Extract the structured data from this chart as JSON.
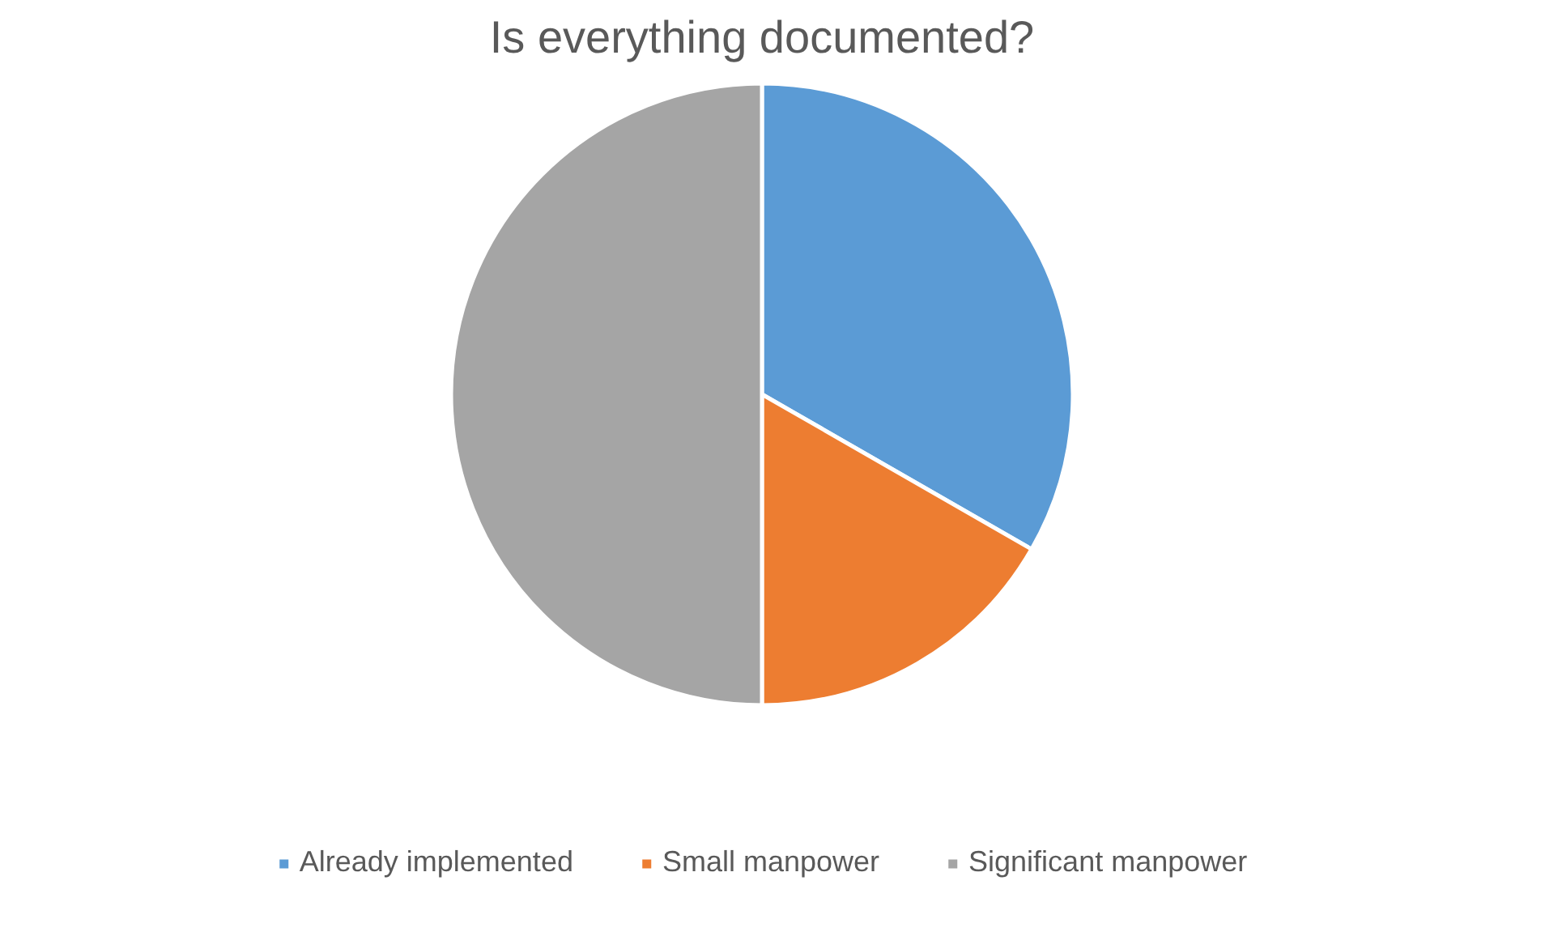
{
  "chart_data": {
    "type": "pie",
    "title": "Is everything documented?",
    "categories": [
      "Already implemented",
      "Small manpower",
      "Significant manpower"
    ],
    "values": [
      33.3,
      16.7,
      50
    ],
    "colors": [
      "#5b9bd5",
      "#ed7d31",
      "#a5a5a5"
    ],
    "legend": "bottom"
  }
}
